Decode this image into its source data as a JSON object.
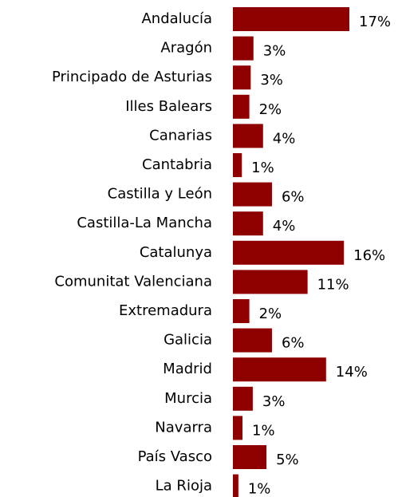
{
  "chart_data": {
    "type": "bar",
    "orientation": "horizontal",
    "color": "#8e0000",
    "categories": [
      "Andalucía",
      "Aragón",
      "Principado de Asturias",
      "Illes Balears",
      "Canarias",
      "Cantabria",
      "Castilla y León",
      "Castilla-La Mancha",
      "Catalunya",
      "Comunitat Valenciana",
      "Extremadura",
      "Galicia",
      "Madrid",
      "Murcia",
      "Navarra",
      "País Vasco",
      "La Rioja"
    ],
    "values": [
      17.0,
      3.0,
      2.6,
      2.4,
      4.4,
      1.3,
      5.7,
      4.4,
      16.2,
      10.9,
      2.4,
      5.7,
      13.6,
      2.9,
      1.4,
      4.9,
      0.8
    ],
    "value_labels": [
      "17%",
      "3%",
      "3%",
      "2%",
      "4%",
      "1%",
      "6%",
      "4%",
      "16%",
      "11%",
      "2%",
      "6%",
      "14%",
      "3%",
      "1%",
      "5%",
      "1%"
    ]
  }
}
